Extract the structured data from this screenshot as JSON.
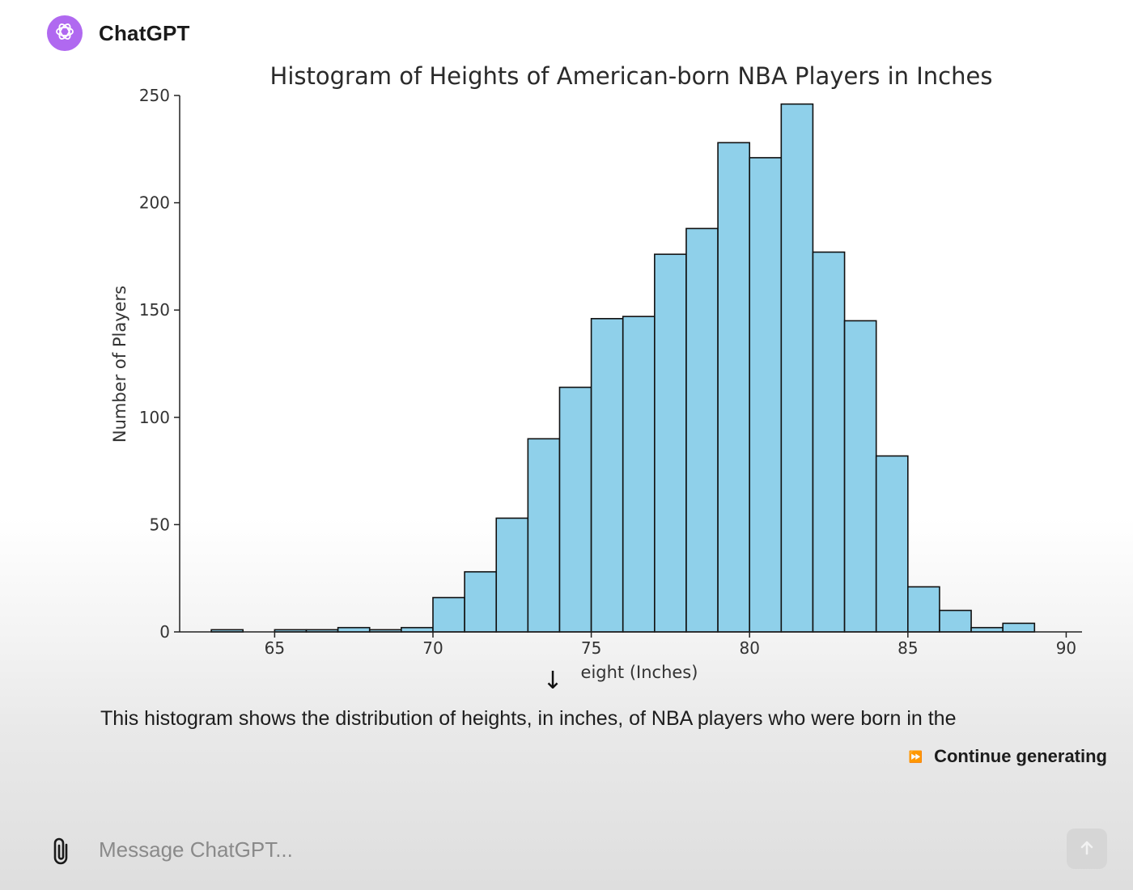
{
  "assistant": {
    "name": "ChatGPT",
    "avatar_color": "#b069f0",
    "avatar_icon": "openai-logo-icon"
  },
  "chart_data": {
    "type": "bar",
    "title": "Histogram of Heights of American-born NBA Players in Inches",
    "xlabel": "eight (Inches)",
    "ylabel": "Number of Players",
    "xlim": [
      62,
      90.5
    ],
    "ylim": [
      0,
      250
    ],
    "xticks": [
      65,
      70,
      75,
      80,
      85,
      90
    ],
    "yticks": [
      0,
      50,
      100,
      150,
      200,
      250
    ],
    "bin_width": 1,
    "bins": [
      {
        "x0": 63,
        "value": 1
      },
      {
        "x0": 64,
        "value": 0
      },
      {
        "x0": 65,
        "value": 1
      },
      {
        "x0": 66,
        "value": 1
      },
      {
        "x0": 67,
        "value": 2
      },
      {
        "x0": 68,
        "value": 1
      },
      {
        "x0": 69,
        "value": 2
      },
      {
        "x0": 70,
        "value": 16
      },
      {
        "x0": 71,
        "value": 28
      },
      {
        "x0": 72,
        "value": 53
      },
      {
        "x0": 73,
        "value": 90
      },
      {
        "x0": 74,
        "value": 114
      },
      {
        "x0": 75,
        "value": 146
      },
      {
        "x0": 76,
        "value": 147
      },
      {
        "x0": 77,
        "value": 176
      },
      {
        "x0": 78,
        "value": 188
      },
      {
        "x0": 79,
        "value": 228
      },
      {
        "x0": 80,
        "value": 221
      },
      {
        "x0": 81,
        "value": 246
      },
      {
        "x0": 82,
        "value": 177
      },
      {
        "x0": 83,
        "value": 145
      },
      {
        "x0": 84,
        "value": 82
      },
      {
        "x0": 85,
        "value": 21
      },
      {
        "x0": 86,
        "value": 10
      },
      {
        "x0": 87,
        "value": 2
      },
      {
        "x0": 88,
        "value": 4
      }
    ],
    "bar_color": "#8fd0ea",
    "grid": false,
    "legend": "none"
  },
  "response": {
    "text": "This histogram shows the distribution of heights, in inches, of NBA players who were born in the"
  },
  "controls": {
    "scroll_down_icon": "arrow-down-icon",
    "scroll_down_glyph": "↓",
    "continue_label": "Continue generating",
    "continue_icon": "fast-forward-icon",
    "continue_glyph": "⏩"
  },
  "composer": {
    "placeholder": "Message ChatGPT...",
    "attach_icon": "paperclip-icon",
    "send_icon": "send-icon"
  }
}
